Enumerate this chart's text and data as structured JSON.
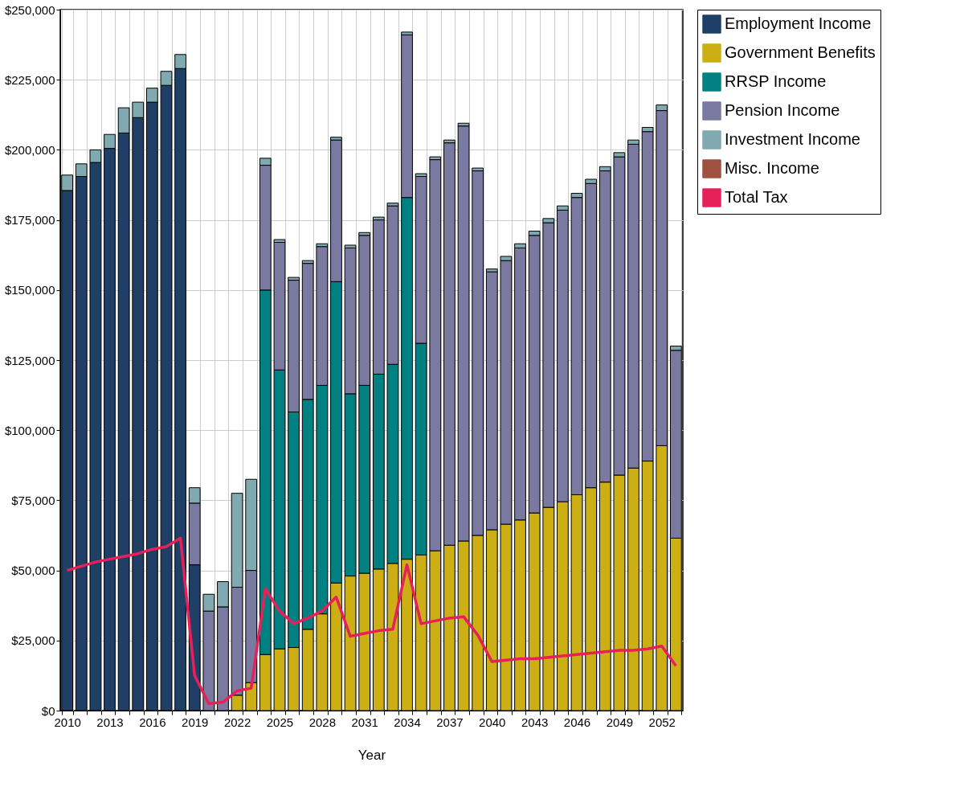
{
  "chart_data": {
    "type": "bar",
    "stacked": true,
    "xlabel": "Year",
    "grid": true,
    "legend": "top right",
    "categories": [
      "2010",
      null,
      null,
      "2013",
      null,
      null,
      "2016",
      null,
      null,
      "2019",
      null,
      null,
      "2022",
      null,
      null,
      "2025",
      null,
      null,
      "2028",
      null,
      null,
      "2031",
      null,
      null,
      "2034",
      null,
      null,
      "2037",
      null,
      null,
      "2040",
      null,
      null,
      "2043",
      null,
      null,
      "2046",
      null,
      null,
      "2049",
      null,
      null,
      "2052",
      null
    ],
    "ylim": [
      0,
      250000
    ],
    "yticks": [
      {
        "value": 0,
        "label": "$0"
      },
      {
        "value": 25000,
        "label": "$25,000"
      },
      {
        "value": 50000,
        "label": "$50,000"
      },
      {
        "value": 75000,
        "label": "$75,000"
      },
      {
        "value": 100000,
        "label": "$100,000"
      },
      {
        "value": 125000,
        "label": "$125,000"
      },
      {
        "value": 150000,
        "label": "$150,000"
      },
      {
        "value": 175000,
        "label": "$175,000"
      },
      {
        "value": 200000,
        "label": "$200,000"
      },
      {
        "value": 225000,
        "label": "$225,000"
      },
      {
        "value": 250000,
        "label": "$250,000"
      }
    ],
    "series": [
      {
        "name": "Employment Income",
        "color": "#1f3f66",
        "values": [
          185500,
          190500,
          195500,
          200500,
          206000,
          211500,
          217000,
          223000,
          229000,
          52000,
          null,
          null,
          null,
          null,
          null,
          null,
          null,
          null,
          null,
          null,
          null,
          null,
          null,
          null,
          null,
          null,
          null,
          null,
          null,
          null,
          null,
          null,
          null,
          null,
          null,
          null,
          null,
          null,
          null,
          null,
          null,
          null,
          null,
          null
        ]
      },
      {
        "name": "Government Benefits",
        "color": "#ccaf14",
        "values": [
          null,
          null,
          null,
          null,
          null,
          null,
          null,
          null,
          null,
          null,
          null,
          null,
          5500,
          10000,
          20000,
          22000,
          22500,
          29000,
          34500,
          45500,
          48000,
          49000,
          50500,
          52500,
          54000,
          55500,
          57000,
          59000,
          60500,
          62500,
          64500,
          66500,
          68000,
          70500,
          72500,
          74500,
          77000,
          79500,
          81500,
          84000,
          86500,
          89000,
          94500,
          61500
        ]
      },
      {
        "name": "RRSP Income",
        "color": "#008080",
        "values": [
          null,
          null,
          null,
          null,
          null,
          null,
          null,
          null,
          null,
          null,
          null,
          null,
          null,
          null,
          130000,
          99500,
          84000,
          82000,
          81500,
          107500,
          65000,
          67000,
          69500,
          71000,
          129000,
          75500,
          null,
          null,
          null,
          null,
          null,
          null,
          null,
          null,
          null,
          null,
          null,
          null,
          null,
          null,
          null,
          null,
          null,
          null
        ]
      },
      {
        "name": "Pension Income",
        "color": "#7a7aa0",
        "values": [
          null,
          null,
          null,
          null,
          null,
          null,
          null,
          null,
          null,
          22000,
          35500,
          37000,
          38500,
          40000,
          44500,
          45500,
          47000,
          48500,
          49500,
          50500,
          52000,
          53500,
          55000,
          56500,
          58000,
          59500,
          139500,
          143500,
          148000,
          130000,
          92000,
          94000,
          97000,
          99000,
          101500,
          104000,
          106000,
          108500,
          111000,
          113500,
          115500,
          117500,
          119500,
          67000
        ]
      },
      {
        "name": "Investment Income",
        "color": "#80aab0",
        "values": [
          5500,
          4500,
          4500,
          5000,
          9000,
          5500,
          5000,
          5000,
          5000,
          5500,
          6000,
          9000,
          33500,
          32500,
          2500,
          1000,
          1000,
          1000,
          1000,
          1000,
          1000,
          1000,
          1000,
          1000,
          1000,
          1000,
          1000,
          1000,
          1000,
          1000,
          1000,
          1500,
          1500,
          1500,
          1500,
          1500,
          1500,
          1500,
          1500,
          1500,
          1500,
          1500,
          2000,
          1500
        ]
      },
      {
        "name": "Misc. Income",
        "color": "#a05040",
        "values": [
          null,
          null,
          null,
          null,
          null,
          null,
          null,
          null,
          null,
          null,
          null,
          null,
          null,
          null,
          null,
          null,
          null,
          null,
          null,
          null,
          null,
          null,
          null,
          null,
          null,
          null,
          null,
          null,
          null,
          null,
          null,
          null,
          null,
          null,
          null,
          null,
          null,
          null,
          null,
          null,
          null,
          null,
          null,
          null
        ]
      },
      {
        "name": "Total Tax",
        "color": "#e8205a",
        "type": "line",
        "values": [
          50000,
          51500,
          53000,
          54000,
          55000,
          56000,
          57500,
          58500,
          61500,
          12500,
          2500,
          3000,
          7000,
          8000,
          43500,
          35500,
          31000,
          33000,
          35500,
          40500,
          26500,
          27500,
          28500,
          29000,
          52000,
          31000,
          32000,
          33000,
          33500,
          27000,
          17500,
          18000,
          18500,
          18500,
          19000,
          19500,
          20000,
          20500,
          21000,
          21500,
          21500,
          22000,
          23000,
          16000
        ]
      }
    ]
  }
}
